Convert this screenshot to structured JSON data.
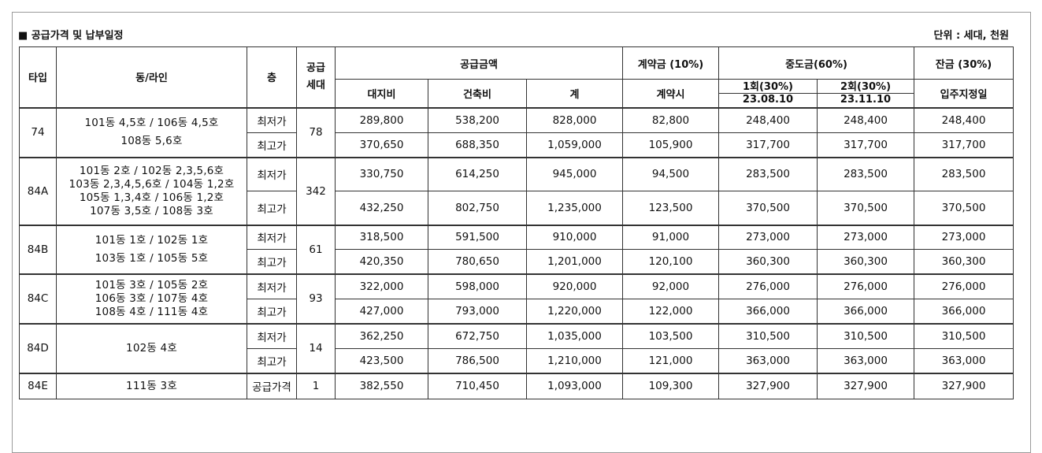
{
  "header": {
    "title": "■ 공급가격 및 납부일정",
    "unit": "단위 : 세대, 천원"
  },
  "table": {
    "head": {
      "type": "타입",
      "dong": "동/라인",
      "floor": "층",
      "households_1": "공급",
      "households_2": "세대",
      "supply": "공급금액",
      "deposit": "계약금 (10%)",
      "middle": "중도금(60%)",
      "balance": "잔금 (30%)",
      "land": "대지비",
      "building": "건축비",
      "total": "계",
      "contract_at": "계약시",
      "mid1_label": "1회(30%)",
      "mid1_date": "23.08.10",
      "mid2_label": "2회(30%)",
      "mid2_date": "23.11.10",
      "move_in": "입주지정일"
    },
    "groups": [
      {
        "type": "74",
        "dong_lines": [
          "101동 4,5호 / 106동 4,5호",
          "108동 5,6호"
        ],
        "households": "78",
        "rows": [
          {
            "floor": "최저가",
            "land": "289,800",
            "building": "538,200",
            "total": "828,000",
            "deposit": "82,800",
            "mid1": "248,400",
            "mid2": "248,400",
            "balance": "248,400"
          },
          {
            "floor": "최고가",
            "land": "370,650",
            "building": "688,350",
            "total": "1,059,000",
            "deposit": "105,900",
            "mid1": "317,700",
            "mid2": "317,700",
            "balance": "317,700"
          }
        ]
      },
      {
        "type": "84A",
        "dong_lines": [
          "101동 2호 / 102동 2,3,5,6호",
          "103동 2,3,4,5,6호 / 104동 1,2호",
          "105동 1,3,4호 / 106동 1,2호",
          "107동 3,5호 / 108동 3호"
        ],
        "households": "342",
        "rows": [
          {
            "floor": "최저가",
            "land": "330,750",
            "building": "614,250",
            "total": "945,000",
            "deposit": "94,500",
            "mid1": "283,500",
            "mid2": "283,500",
            "balance": "283,500"
          },
          {
            "floor": "최고가",
            "land": "432,250",
            "building": "802,750",
            "total": "1,235,000",
            "deposit": "123,500",
            "mid1": "370,500",
            "mid2": "370,500",
            "balance": "370,500"
          }
        ]
      },
      {
        "type": "84B",
        "dong_lines": [
          "101동 1호 / 102동 1호",
          "103동 1호 / 105동 5호"
        ],
        "households": "61",
        "rows": [
          {
            "floor": "최저가",
            "land": "318,500",
            "building": "591,500",
            "total": "910,000",
            "deposit": "91,000",
            "mid1": "273,000",
            "mid2": "273,000",
            "balance": "273,000"
          },
          {
            "floor": "최고가",
            "land": "420,350",
            "building": "780,650",
            "total": "1,201,000",
            "deposit": "120,100",
            "mid1": "360,300",
            "mid2": "360,300",
            "balance": "360,300"
          }
        ]
      },
      {
        "type": "84C",
        "dong_lines": [
          "101동 3호 / 105동 2호",
          "106동 3호 / 107동 4호",
          "108동 4호 / 111동 4호"
        ],
        "households": "93",
        "rows": [
          {
            "floor": "최저가",
            "land": "322,000",
            "building": "598,000",
            "total": "920,000",
            "deposit": "92,000",
            "mid1": "276,000",
            "mid2": "276,000",
            "balance": "276,000"
          },
          {
            "floor": "최고가",
            "land": "427,000",
            "building": "793,000",
            "total": "1,220,000",
            "deposit": "122,000",
            "mid1": "366,000",
            "mid2": "366,000",
            "balance": "366,000"
          }
        ]
      },
      {
        "type": "84D",
        "dong_lines": [
          "102동 4호"
        ],
        "households": "14",
        "rows": [
          {
            "floor": "최저가",
            "land": "362,250",
            "building": "672,750",
            "total": "1,035,000",
            "deposit": "103,500",
            "mid1": "310,500",
            "mid2": "310,500",
            "balance": "310,500"
          },
          {
            "floor": "최고가",
            "land": "423,500",
            "building": "786,500",
            "total": "1,210,000",
            "deposit": "121,000",
            "mid1": "363,000",
            "mid2": "363,000",
            "balance": "363,000"
          }
        ]
      },
      {
        "type": "84E",
        "dong_lines": [
          "111동 3호"
        ],
        "households": "1",
        "rows": [
          {
            "floor": "공급가격",
            "land": "382,550",
            "building": "710,450",
            "total": "1,093,000",
            "deposit": "109,300",
            "mid1": "327,900",
            "mid2": "327,900",
            "balance": "327,900"
          }
        ]
      }
    ]
  }
}
